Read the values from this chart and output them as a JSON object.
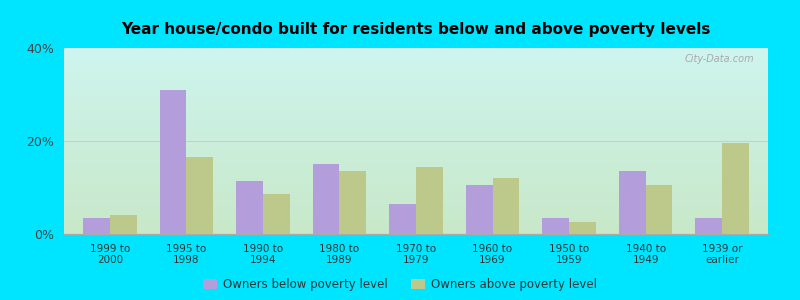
{
  "title": "Year house/condo built for residents below and above poverty levels",
  "categories": [
    "1999 to\n2000",
    "1995 to\n1998",
    "1990 to\n1994",
    "1980 to\n1989",
    "1970 to\n1979",
    "1960 to\n1969",
    "1950 to\n1959",
    "1940 to\n1949",
    "1939 or\nearlier"
  ],
  "below_poverty": [
    3.5,
    31.0,
    11.5,
    15.0,
    6.5,
    10.5,
    3.5,
    13.5,
    3.5
  ],
  "above_poverty": [
    4.0,
    16.5,
    8.5,
    13.5,
    14.5,
    12.0,
    2.5,
    10.5,
    19.5
  ],
  "below_color": "#b39ddb",
  "above_color": "#bdc98a",
  "bg_top_left": "#cceedd",
  "bg_bottom_right": "#ddeedd",
  "outer_bg": "#00e5ff",
  "ylim": [
    0,
    40
  ],
  "yticks": [
    0,
    20,
    40
  ],
  "ytick_labels": [
    "0%",
    "20%",
    "40%"
  ],
  "legend_below": "Owners below poverty level",
  "legend_above": "Owners above poverty level",
  "bar_width": 0.35,
  "watermark": "City-Data.com"
}
